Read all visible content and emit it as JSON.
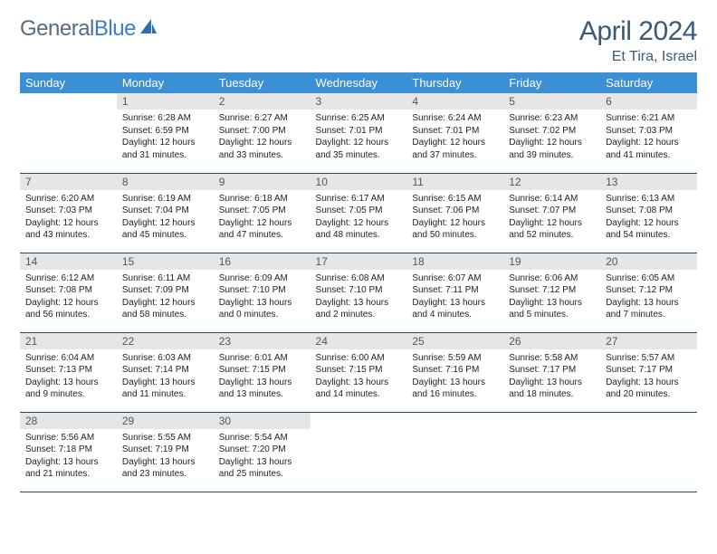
{
  "brand": {
    "name_part1": "General",
    "name_part2": "Blue",
    "text_color": "#5a6b7a",
    "accent_color": "#3b7fc4"
  },
  "header": {
    "month_title": "April 2024",
    "location": "Et Tira, Israel",
    "title_color": "#3a5a78"
  },
  "styling": {
    "header_bg": "#3b8fd4",
    "header_text": "#ffffff",
    "daynum_bg": "#e6e6e6",
    "daynum_color": "#555555",
    "cell_border": "#1e4a6e",
    "body_text": "#222222",
    "page_bg": "#ffffff",
    "th_fontsize": 13,
    "daynum_fontsize": 12,
    "content_fontsize": 10
  },
  "weekdays": [
    "Sunday",
    "Monday",
    "Tuesday",
    "Wednesday",
    "Thursday",
    "Friday",
    "Saturday"
  ],
  "weeks": [
    [
      null,
      {
        "n": "1",
        "sr": "6:28 AM",
        "ss": "6:59 PM",
        "dl1": "12 hours",
        "dl2": "and 31 minutes."
      },
      {
        "n": "2",
        "sr": "6:27 AM",
        "ss": "7:00 PM",
        "dl1": "12 hours",
        "dl2": "and 33 minutes."
      },
      {
        "n": "3",
        "sr": "6:25 AM",
        "ss": "7:01 PM",
        "dl1": "12 hours",
        "dl2": "and 35 minutes."
      },
      {
        "n": "4",
        "sr": "6:24 AM",
        "ss": "7:01 PM",
        "dl1": "12 hours",
        "dl2": "and 37 minutes."
      },
      {
        "n": "5",
        "sr": "6:23 AM",
        "ss": "7:02 PM",
        "dl1": "12 hours",
        "dl2": "and 39 minutes."
      },
      {
        "n": "6",
        "sr": "6:21 AM",
        "ss": "7:03 PM",
        "dl1": "12 hours",
        "dl2": "and 41 minutes."
      }
    ],
    [
      {
        "n": "7",
        "sr": "6:20 AM",
        "ss": "7:03 PM",
        "dl1": "12 hours",
        "dl2": "and 43 minutes."
      },
      {
        "n": "8",
        "sr": "6:19 AM",
        "ss": "7:04 PM",
        "dl1": "12 hours",
        "dl2": "and 45 minutes."
      },
      {
        "n": "9",
        "sr": "6:18 AM",
        "ss": "7:05 PM",
        "dl1": "12 hours",
        "dl2": "and 47 minutes."
      },
      {
        "n": "10",
        "sr": "6:17 AM",
        "ss": "7:05 PM",
        "dl1": "12 hours",
        "dl2": "and 48 minutes."
      },
      {
        "n": "11",
        "sr": "6:15 AM",
        "ss": "7:06 PM",
        "dl1": "12 hours",
        "dl2": "and 50 minutes."
      },
      {
        "n": "12",
        "sr": "6:14 AM",
        "ss": "7:07 PM",
        "dl1": "12 hours",
        "dl2": "and 52 minutes."
      },
      {
        "n": "13",
        "sr": "6:13 AM",
        "ss": "7:08 PM",
        "dl1": "12 hours",
        "dl2": "and 54 minutes."
      }
    ],
    [
      {
        "n": "14",
        "sr": "6:12 AM",
        "ss": "7:08 PM",
        "dl1": "12 hours",
        "dl2": "and 56 minutes."
      },
      {
        "n": "15",
        "sr": "6:11 AM",
        "ss": "7:09 PM",
        "dl1": "12 hours",
        "dl2": "and 58 minutes."
      },
      {
        "n": "16",
        "sr": "6:09 AM",
        "ss": "7:10 PM",
        "dl1": "13 hours",
        "dl2": "and 0 minutes."
      },
      {
        "n": "17",
        "sr": "6:08 AM",
        "ss": "7:10 PM",
        "dl1": "13 hours",
        "dl2": "and 2 minutes."
      },
      {
        "n": "18",
        "sr": "6:07 AM",
        "ss": "7:11 PM",
        "dl1": "13 hours",
        "dl2": "and 4 minutes."
      },
      {
        "n": "19",
        "sr": "6:06 AM",
        "ss": "7:12 PM",
        "dl1": "13 hours",
        "dl2": "and 5 minutes."
      },
      {
        "n": "20",
        "sr": "6:05 AM",
        "ss": "7:12 PM",
        "dl1": "13 hours",
        "dl2": "and 7 minutes."
      }
    ],
    [
      {
        "n": "21",
        "sr": "6:04 AM",
        "ss": "7:13 PM",
        "dl1": "13 hours",
        "dl2": "and 9 minutes."
      },
      {
        "n": "22",
        "sr": "6:03 AM",
        "ss": "7:14 PM",
        "dl1": "13 hours",
        "dl2": "and 11 minutes."
      },
      {
        "n": "23",
        "sr": "6:01 AM",
        "ss": "7:15 PM",
        "dl1": "13 hours",
        "dl2": "and 13 minutes."
      },
      {
        "n": "24",
        "sr": "6:00 AM",
        "ss": "7:15 PM",
        "dl1": "13 hours",
        "dl2": "and 14 minutes."
      },
      {
        "n": "25",
        "sr": "5:59 AM",
        "ss": "7:16 PM",
        "dl1": "13 hours",
        "dl2": "and 16 minutes."
      },
      {
        "n": "26",
        "sr": "5:58 AM",
        "ss": "7:17 PM",
        "dl1": "13 hours",
        "dl2": "and 18 minutes."
      },
      {
        "n": "27",
        "sr": "5:57 AM",
        "ss": "7:17 PM",
        "dl1": "13 hours",
        "dl2": "and 20 minutes."
      }
    ],
    [
      {
        "n": "28",
        "sr": "5:56 AM",
        "ss": "7:18 PM",
        "dl1": "13 hours",
        "dl2": "and 21 minutes."
      },
      {
        "n": "29",
        "sr": "5:55 AM",
        "ss": "7:19 PM",
        "dl1": "13 hours",
        "dl2": "and 23 minutes."
      },
      {
        "n": "30",
        "sr": "5:54 AM",
        "ss": "7:20 PM",
        "dl1": "13 hours",
        "dl2": "and 25 minutes."
      },
      null,
      null,
      null,
      null
    ]
  ],
  "labels": {
    "sunrise": "Sunrise:",
    "sunset": "Sunset:",
    "daylight": "Daylight:"
  }
}
